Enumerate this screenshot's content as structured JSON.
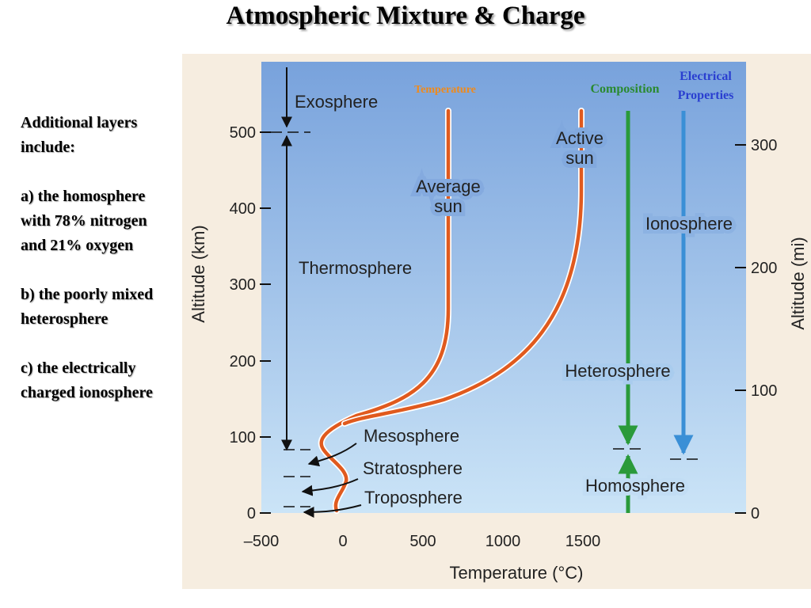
{
  "slide": {
    "title": "Atmospheric Mixture & Charge",
    "notes": [
      "Additional layers include:",
      "a) the homosphere with 78% nitrogen and 21% oxygen",
      "b) the poorly mixed heterosphere",
      "c) the electrically charged ionosphere"
    ]
  },
  "figure": {
    "headers": {
      "temperature": "Temperature",
      "composition": "Composition",
      "electrical_line1": "Electrical",
      "electrical_line2": "Properties"
    },
    "layers": {
      "exosphere": "Exosphere",
      "thermosphere": "Thermosphere",
      "mesosphere": "Mesosphere",
      "stratosphere": "Stratosphere",
      "troposphere": "Troposphere"
    },
    "curve_labels": {
      "average_line1": "Average",
      "average_line2": "sun",
      "active_line1": "Active",
      "active_line2": "sun"
    },
    "regions": {
      "ionosphere": "Ionosphere",
      "heterosphere": "Heterosphere",
      "homosphere": "Homosphere"
    },
    "axes": {
      "y_left_label": "Altitude (km)",
      "y_right_label": "Altitude (mi)",
      "x_label": "Temperature (°C)",
      "y_left_ticks": [
        "500",
        "400",
        "300",
        "200",
        "100",
        "0"
      ],
      "y_right_ticks": [
        "300",
        "200",
        "100",
        "0"
      ],
      "x_ticks": [
        "–500",
        "0",
        "500",
        "1000",
        "1500"
      ]
    },
    "colors": {
      "sky_top": "#7aa3dc",
      "sky_bottom": "#c9e2f6",
      "curve": "#e05a1e",
      "temperature_header": "#f08a1a",
      "composition": "#2a9a3a",
      "electrical": "#3a8fd6",
      "electrical_header": "#2a3fd0"
    }
  }
}
